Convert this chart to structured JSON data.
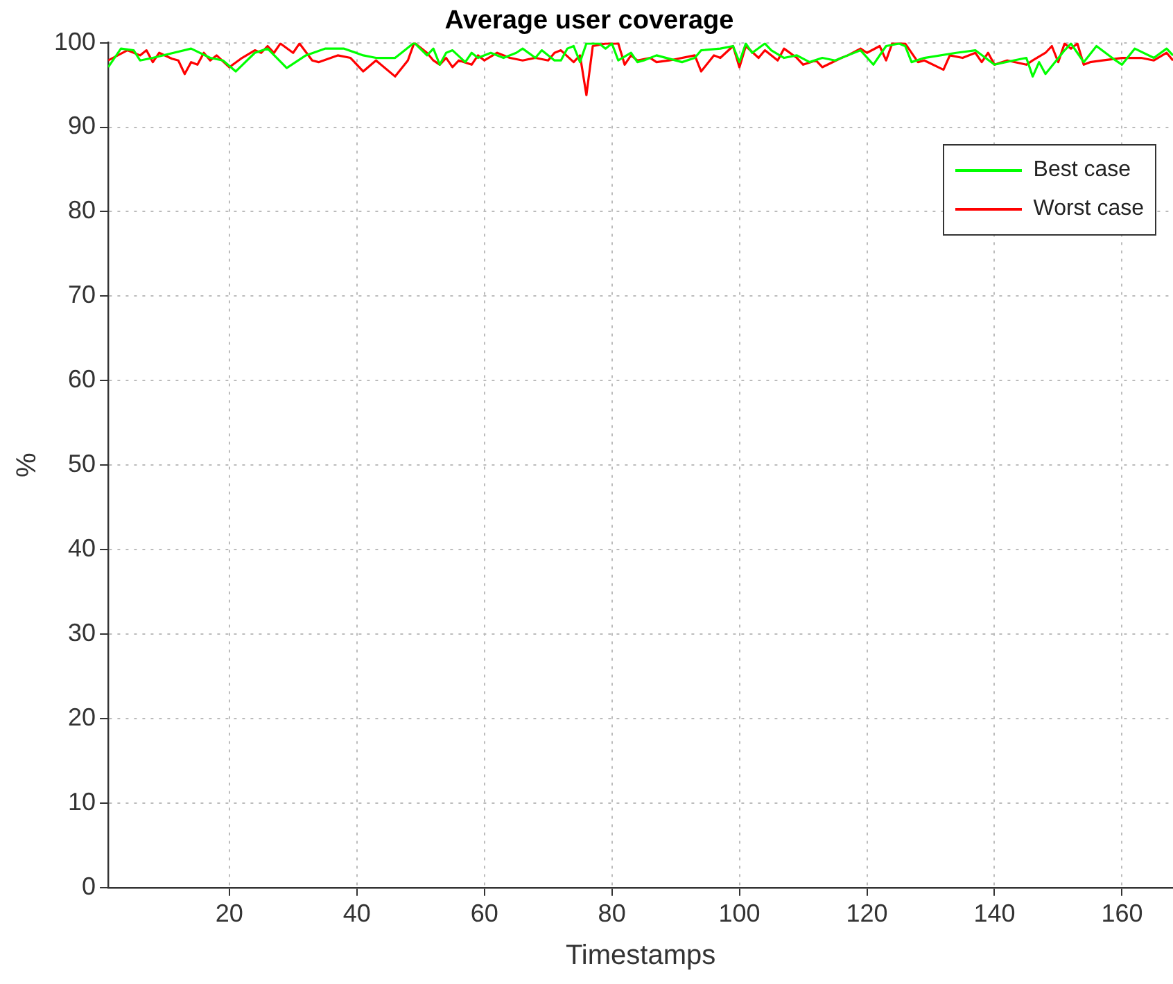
{
  "chart_data": {
    "type": "line",
    "title": "Average user coverage",
    "xlabel": "Timestamps",
    "ylabel": "%",
    "xlim": [
      1,
      168
    ],
    "xticks": [
      20,
      40,
      60,
      80,
      100,
      120,
      140,
      160
    ],
    "ylim": [
      0,
      100
    ],
    "yticks": [
      0,
      10,
      20,
      30,
      40,
      50,
      60,
      70,
      80,
      90,
      100
    ],
    "grid": true,
    "legend": "top right",
    "marker": "none",
    "line_style": "solid",
    "series": [
      {
        "name": "Best case",
        "color": "#00ff00",
        "x": [
          1,
          3,
          5,
          6,
          8,
          14,
          17,
          19,
          21,
          24,
          26,
          29,
          32,
          35,
          38,
          41,
          43,
          46,
          47,
          49,
          51,
          52,
          53,
          54,
          55,
          57,
          58,
          59,
          61,
          63,
          65,
          66,
          68,
          69,
          71,
          72,
          73,
          74,
          75,
          76,
          78,
          79,
          80,
          81,
          83,
          84,
          85,
          87,
          91,
          93,
          94,
          97,
          99,
          100,
          101,
          102,
          104,
          105,
          107,
          109,
          111,
          113,
          115,
          117,
          119,
          121,
          123,
          125,
          126,
          127,
          129,
          134,
          137,
          140,
          143,
          145,
          146,
          147,
          148,
          151,
          152,
          153,
          154,
          156,
          159,
          160,
          162,
          165,
          167,
          168
        ],
        "values": [
          97.1,
          99.3,
          99.1,
          97.9,
          98.2,
          99.3,
          98.2,
          97.9,
          96.6,
          98.8,
          99.3,
          97,
          98.5,
          99.3,
          99.3,
          98.5,
          98.2,
          98.2,
          98.8,
          100,
          98.5,
          99.3,
          97.4,
          98.8,
          99.1,
          97.7,
          98.8,
          98.2,
          98.8,
          98.2,
          98.8,
          99.3,
          98.2,
          99.1,
          97.9,
          97.9,
          99.3,
          99.6,
          97.7,
          99.9,
          99.9,
          99.3,
          99.9,
          97.9,
          98.8,
          97.7,
          97.9,
          98.5,
          97.7,
          98.2,
          99.1,
          99.3,
          99.6,
          97.7,
          99.9,
          98.8,
          99.9,
          99.1,
          98.2,
          98.5,
          97.7,
          98.2,
          97.9,
          98.5,
          99.1,
          97.4,
          99.6,
          99.9,
          99.6,
          97.7,
          98.2,
          98.8,
          99.1,
          97.4,
          97.9,
          98.2,
          96,
          97.7,
          96.3,
          99.1,
          99.9,
          98.8,
          97.7,
          99.6,
          97.9,
          97.4,
          99.3,
          98.2,
          99.3,
          98.5
        ]
      },
      {
        "name": "Worst case",
        "color": "#ff0000",
        "x": [
          1,
          4,
          6,
          7,
          8,
          9,
          11,
          12,
          13,
          14,
          15,
          16,
          17,
          18,
          20,
          22,
          24,
          25,
          26,
          27,
          28,
          30,
          31,
          33,
          34,
          37,
          39,
          41,
          43,
          46,
          48,
          49,
          51,
          52,
          53,
          54,
          55,
          56,
          58,
          59,
          60,
          62,
          64,
          66,
          68,
          70,
          71,
          72,
          74,
          75,
          76,
          77,
          79,
          81,
          82,
          83,
          84,
          86,
          87,
          89,
          93,
          94,
          96,
          97,
          99,
          100,
          101,
          103,
          104,
          106,
          107,
          109,
          110,
          112,
          113,
          116,
          117,
          119,
          120,
          122,
          123,
          124,
          126,
          128,
          129,
          132,
          133,
          135,
          137,
          138,
          139,
          140,
          142,
          145,
          146,
          148,
          149,
          150,
          151,
          152,
          153,
          154,
          155,
          157,
          160,
          163,
          165,
          167,
          168
        ],
        "values": [
          97.9,
          99.1,
          98.5,
          99.1,
          97.7,
          98.8,
          98.1,
          97.9,
          96.3,
          97.7,
          97.4,
          98.8,
          97.9,
          98.5,
          97.1,
          98.2,
          99.1,
          98.8,
          99.6,
          98.8,
          99.9,
          98.8,
          99.9,
          97.9,
          97.7,
          98.5,
          98.2,
          96.6,
          97.9,
          96,
          97.9,
          100,
          98.8,
          97.9,
          97.4,
          98.2,
          97.1,
          97.9,
          97.4,
          98.5,
          97.9,
          98.8,
          98.2,
          97.9,
          98.2,
          97.9,
          98.8,
          99.1,
          97.7,
          98.5,
          93.8,
          99.6,
          99.9,
          99.9,
          97.4,
          98.5,
          97.9,
          98.2,
          97.7,
          97.9,
          98.5,
          96.6,
          98.5,
          98.2,
          99.6,
          97.1,
          99.6,
          98.2,
          99.1,
          97.9,
          99.3,
          98.2,
          97.4,
          97.9,
          97.1,
          98.2,
          98.5,
          99.3,
          98.8,
          99.6,
          97.9,
          100,
          99.9,
          97.7,
          97.9,
          96.8,
          98.5,
          98.2,
          98.8,
          97.7,
          98.8,
          97.4,
          97.9,
          97.4,
          97.9,
          98.8,
          99.6,
          97.7,
          99.9,
          99.3,
          99.9,
          97.4,
          97.7,
          97.9,
          98.2,
          98.2,
          97.9,
          98.8,
          97.9
        ]
      }
    ]
  }
}
